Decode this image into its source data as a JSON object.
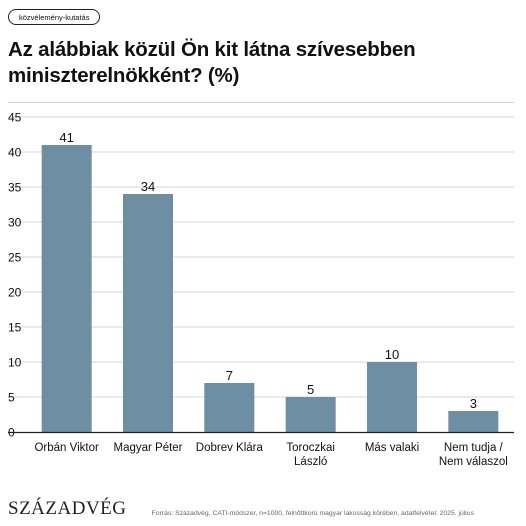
{
  "tag": "közvélemény-kutatás",
  "title": "Az alábbiak közül Ön kit látna szívesebben miniszterelnökként? (%)",
  "logo": "SZÁZADVÉG",
  "source": "Forrás: Századvég, CATI-módszer, n=1000, felnőttkorú magyar lakosság körében, adatfelvétel: 2025. július",
  "colors": {
    "bar": "#6e8fa3",
    "grid": "#d6d6d6",
    "axis": "#222222",
    "text": "#111111"
  },
  "chart_data": {
    "type": "bar",
    "title": "Az alábbiak közül Ön kit látna szívesebben miniszterelnökként? (%)",
    "categories": [
      [
        "Orbán Viktor"
      ],
      [
        "Magyar Péter"
      ],
      [
        "Dobrev Klára"
      ],
      [
        "Toroczkai",
        "László"
      ],
      [
        "Más valaki"
      ],
      [
        "Nem tudja /",
        "Nem válaszol"
      ]
    ],
    "values": [
      41,
      34,
      7,
      5,
      10,
      3
    ],
    "ylim": [
      0,
      45
    ],
    "yticks": [
      0,
      5,
      10,
      15,
      20,
      25,
      30,
      35,
      40,
      45
    ],
    "grid": true,
    "data_labels": true
  }
}
